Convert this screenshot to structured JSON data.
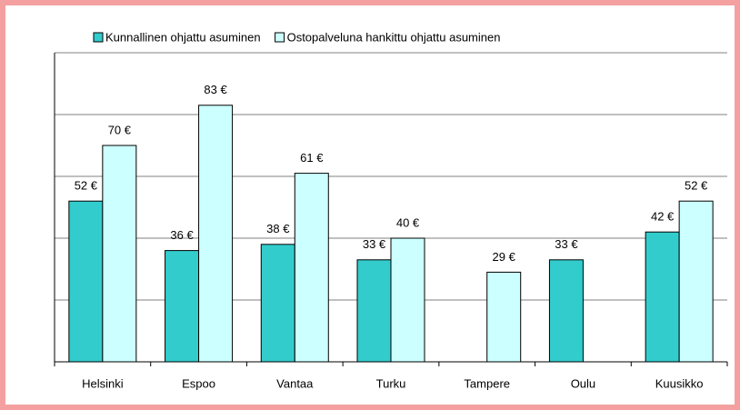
{
  "chart_data": {
    "type": "bar",
    "categories": [
      "Helsinki",
      "Espoo",
      "Vantaa",
      "Turku",
      "Tampere",
      "Oulu",
      "Kuusikko"
    ],
    "series": [
      {
        "name": "Kunnallinen ohjattu asuminen",
        "color": "#33cccc",
        "values": [
          52,
          36,
          38,
          33,
          null,
          33,
          42
        ],
        "value_labels": [
          "52 €",
          "36 €",
          "38 €",
          "33 €",
          null,
          "33 €",
          "42 €"
        ]
      },
      {
        "name": "Ostopalveluna hankittu ohjattu asuminen",
        "color": "#ccffff",
        "values": [
          70,
          83,
          61,
          40,
          29,
          null,
          52
        ],
        "value_labels": [
          "70 €",
          "83 €",
          "61 €",
          "40 €",
          "29 €",
          null,
          "52 €"
        ]
      }
    ],
    "ylim": [
      0,
      100
    ],
    "yticks": [
      0,
      20,
      40,
      60,
      80,
      100
    ],
    "grid": true
  }
}
